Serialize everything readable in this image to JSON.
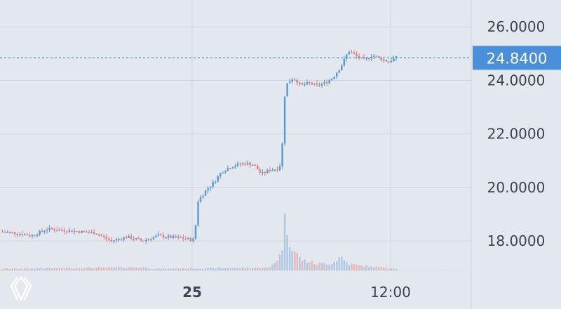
{
  "colors": {
    "background": "#e3e7ee",
    "grid": "#cfd5de",
    "up": "#5b9bd5",
    "down": "#e57f7f",
    "up_volume": "#a9c4e2",
    "down_volume": "#eab2b2",
    "price_line": "#3f87d8",
    "price_badge": "#4a8fd9",
    "axis_text": "#3d4450"
  },
  "logo": {
    "icon": "diamond-logo-icon"
  },
  "chart_data": {
    "type": "candlestick",
    "title": "",
    "xlabel": "",
    "ylabel": "",
    "ylim": [
      16.9,
      27.0
    ],
    "y_ticks": [
      {
        "value": 26.0,
        "label": "26.0000"
      },
      {
        "value": 24.0,
        "label": "24.0000"
      },
      {
        "value": 22.0,
        "label": "22.0000"
      },
      {
        "value": 20.0,
        "label": "20.0000"
      },
      {
        "value": 18.0,
        "label": "18.0000"
      }
    ],
    "x_ticks": [
      {
        "position": 0.5,
        "label": "25",
        "bold": true
      },
      {
        "position": 0.75,
        "label": "12:00",
        "bold": false
      }
    ],
    "current_price": {
      "value": 24.84,
      "label": "24.8400"
    },
    "grid": true,
    "key_points": [
      [
        0,
        18.35
      ],
      [
        4,
        18.3
      ],
      [
        8,
        18.2
      ],
      [
        12,
        18.45
      ],
      [
        16,
        18.4
      ],
      [
        20,
        18.35
      ],
      [
        24,
        18.3
      ],
      [
        28,
        18.0
      ],
      [
        32,
        18.15
      ],
      [
        36,
        18.0
      ],
      [
        40,
        18.2
      ],
      [
        42,
        18.15
      ],
      [
        46,
        18.1
      ],
      [
        48,
        18.05
      ],
      [
        49,
        18.05
      ],
      [
        50,
        19.5
      ],
      [
        52,
        19.9
      ],
      [
        54,
        20.2
      ],
      [
        56,
        20.6
      ],
      [
        58,
        20.75
      ],
      [
        60,
        20.85
      ],
      [
        62,
        20.9
      ],
      [
        64,
        20.85
      ],
      [
        66,
        20.5
      ],
      [
        68,
        20.65
      ],
      [
        70,
        20.7
      ],
      [
        71,
        20.9
      ],
      [
        72,
        23.8
      ],
      [
        74,
        24.1
      ],
      [
        76,
        23.8
      ],
      [
        78,
        23.9
      ],
      [
        80,
        23.8
      ],
      [
        82,
        23.9
      ],
      [
        84,
        24.1
      ],
      [
        86,
        24.5
      ],
      [
        88,
        25.1
      ],
      [
        90,
        24.9
      ],
      [
        92,
        24.75
      ],
      [
        94,
        24.95
      ],
      [
        96,
        24.8
      ],
      [
        98,
        24.7
      ],
      [
        100,
        24.84
      ]
    ],
    "volume_points": [
      [
        0,
        0.03
      ],
      [
        37,
        0.06
      ],
      [
        38,
        0.03
      ],
      [
        66,
        0.05
      ],
      [
        68,
        0.05
      ],
      [
        71,
        0.3
      ],
      [
        72,
        1.0
      ],
      [
        73,
        0.6
      ],
      [
        74,
        0.4
      ],
      [
        76,
        0.2
      ],
      [
        80,
        0.12
      ],
      [
        84,
        0.14
      ],
      [
        86,
        0.26
      ],
      [
        88,
        0.12
      ],
      [
        92,
        0.08
      ],
      [
        96,
        0.06
      ],
      [
        100,
        0.03
      ]
    ]
  }
}
